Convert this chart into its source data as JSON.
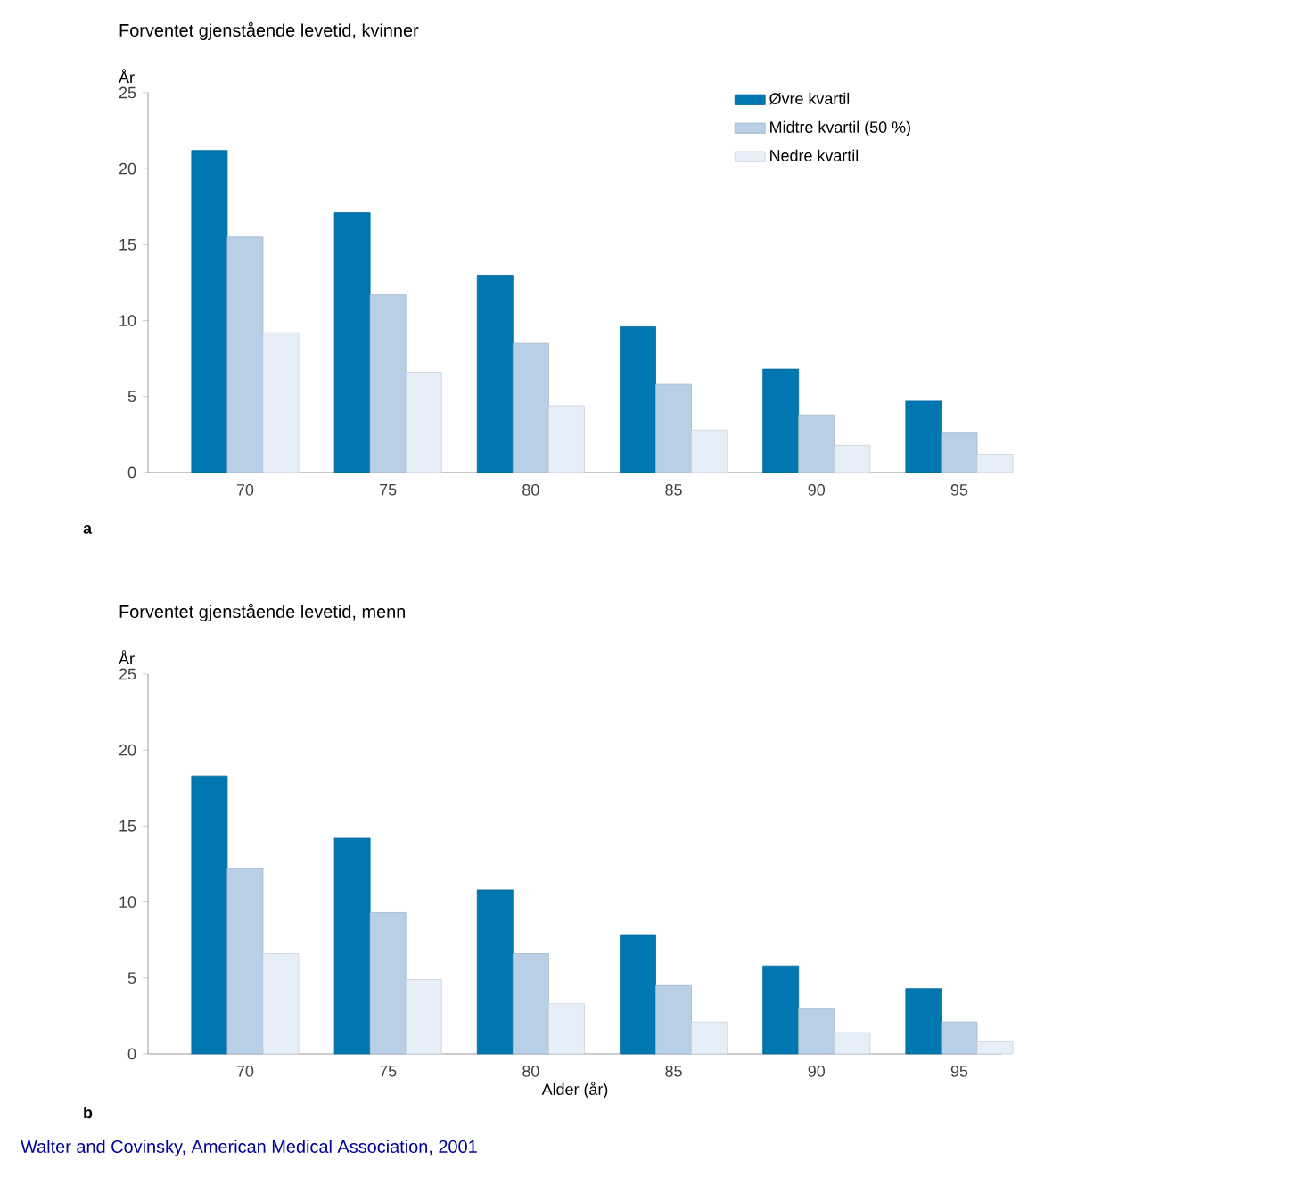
{
  "chart_data": [
    {
      "type": "bar",
      "title": "Forventet gjenstående levetid, kvinner",
      "ylabel": "År",
      "categories": [
        "70",
        "75",
        "80",
        "85",
        "90",
        "95"
      ],
      "series": [
        {
          "name": "Øvre kvartil",
          "color": "#0077b0",
          "values": [
            21.2,
            17.1,
            13.0,
            9.6,
            6.8,
            4.7
          ]
        },
        {
          "name": "Midtre kvartil (50 %)",
          "color": "#b8cfe6",
          "values": [
            15.5,
            11.7,
            8.5,
            5.8,
            3.8,
            2.6
          ]
        },
        {
          "name": "Nedre kvartil",
          "color": "#e6eef8",
          "values": [
            9.2,
            6.6,
            4.4,
            2.8,
            1.8,
            1.2
          ]
        }
      ],
      "ylim": [
        0,
        25
      ],
      "yticks": [
        0,
        5,
        10,
        15,
        20,
        25
      ],
      "legend": "top right",
      "annotations": [
        "a"
      ]
    },
    {
      "type": "bar",
      "title": "Forventet gjenstående levetid, menn",
      "ylabel": "År",
      "xlabel": "Alder (år)",
      "categories": [
        "70",
        "75",
        "80",
        "85",
        "90",
        "95"
      ],
      "series": [
        {
          "color": "#0077b0",
          "values": [
            18.3,
            14.2,
            10.8,
            7.8,
            5.8,
            4.3
          ]
        },
        {
          "color": "#b8cfe6",
          "values": [
            12.2,
            9.3,
            6.6,
            4.5,
            3.0,
            2.1
          ]
        },
        {
          "color": "#e6eef8",
          "values": [
            6.6,
            4.9,
            3.3,
            2.1,
            1.4,
            0.8
          ]
        }
      ],
      "ylim": [
        0,
        25
      ],
      "yticks": [
        0,
        5,
        10,
        15,
        20,
        25
      ],
      "annotations": [
        "b",
        "Walter and Covinsky, American Medical Association, 2001"
      ]
    }
  ]
}
